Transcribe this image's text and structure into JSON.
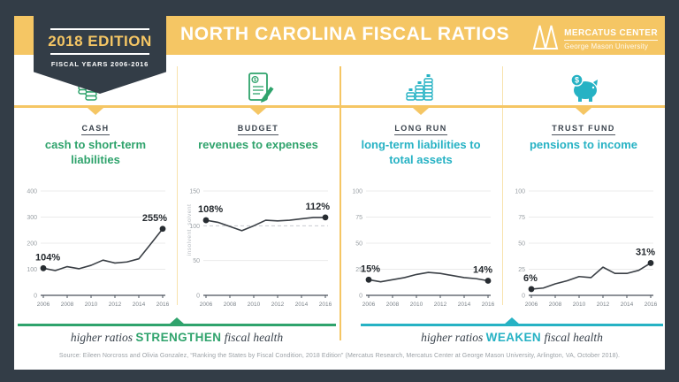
{
  "header": {
    "badge": {
      "title": "2018 EDITION",
      "subtitle": "FISCAL YEARS 2006-2016"
    },
    "title": "NORTH CAROLINA FISCAL RATIOS",
    "logo": {
      "name": "MERCATUS CENTER",
      "subname": "George Mason University"
    }
  },
  "colors": {
    "navy": "#333d47",
    "gold": "#f5c664",
    "green": "#2fa36c",
    "teal": "#26b2c4"
  },
  "panels": [
    {
      "icon": "cash-money-icon",
      "category": "CASH",
      "subtitle": "cash to short-term liabilities"
    },
    {
      "icon": "budget-document-icon",
      "category": "BUDGET",
      "subtitle": "revenues to expenses"
    },
    {
      "icon": "coin-stacks-icon",
      "category": "LONG RUN",
      "subtitle": "long-term liabilities to total assets"
    },
    {
      "icon": "piggy-bank-icon",
      "category": "TRUST FUND",
      "subtitle": "pensions to income"
    }
  ],
  "chart_data": [
    {
      "type": "line",
      "title": "cash to short-term liabilities",
      "x": [
        2006,
        2007,
        2008,
        2009,
        2010,
        2011,
        2012,
        2013,
        2014,
        2015,
        2016
      ],
      "values": [
        104,
        95,
        110,
        102,
        115,
        135,
        124,
        128,
        140,
        197,
        255
      ],
      "ylim": [
        0,
        400
      ],
      "yticks": [
        0,
        100,
        200,
        300,
        400
      ],
      "xticks": [
        2006,
        2008,
        2010,
        2012,
        2014,
        2016
      ],
      "start_label": "104%",
      "end_label": "255%",
      "grid": true,
      "legend": "none"
    },
    {
      "type": "line",
      "title": "revenues to expenses",
      "x": [
        2006,
        2007,
        2008,
        2009,
        2010,
        2011,
        2012,
        2013,
        2014,
        2015,
        2016
      ],
      "values": [
        108,
        105,
        99,
        93,
        100,
        108,
        107,
        108,
        110,
        112,
        112
      ],
      "ylim": [
        0,
        150
      ],
      "yticks": [
        0,
        50,
        100,
        150
      ],
      "xticks": [
        2006,
        2008,
        2010,
        2012,
        2014,
        2016
      ],
      "dashed_ref": 100,
      "side_labels": [
        {
          "text": "solvent",
          "value": 116
        },
        {
          "text": "insolvent",
          "value": 76
        }
      ],
      "start_label": "108%",
      "end_label": "112%",
      "grid": true,
      "legend": "none"
    },
    {
      "type": "line",
      "title": "long-term liabilities to total assets",
      "x": [
        2006,
        2007,
        2008,
        2009,
        2010,
        2011,
        2012,
        2013,
        2014,
        2015,
        2016
      ],
      "values": [
        15,
        13,
        15,
        17,
        20,
        22,
        21,
        19,
        17,
        16,
        14
      ],
      "ylim": [
        0,
        100
      ],
      "yticks": [
        0,
        25,
        50,
        75,
        100
      ],
      "xticks": [
        2006,
        2008,
        2010,
        2012,
        2014,
        2016
      ],
      "start_label": "15%",
      "end_label": "14%",
      "grid": true,
      "legend": "none"
    },
    {
      "type": "line",
      "title": "pensions to income",
      "x": [
        2006,
        2007,
        2008,
        2009,
        2010,
        2011,
        2012,
        2013,
        2014,
        2015,
        2016
      ],
      "values": [
        6,
        7,
        11,
        14,
        18,
        17,
        27,
        21,
        21,
        24,
        31
      ],
      "ylim": [
        0,
        100
      ],
      "yticks": [
        0,
        25,
        50,
        75,
        100
      ],
      "xticks": [
        2006,
        2008,
        2010,
        2012,
        2014,
        2016
      ],
      "start_label": "6%",
      "end_label": "31%",
      "grid": true,
      "legend": "none"
    }
  ],
  "footnotes": [
    {
      "prefix": "higher ratios ",
      "emphasis": "STRENGTHEN",
      "suffix": " fiscal health"
    },
    {
      "prefix": "higher ratios ",
      "emphasis": "WEAKEN",
      "suffix": " fiscal health"
    }
  ],
  "source": "Source: Eileen Norcross and Olivia Gonzalez, “Ranking the States by Fiscal Condition, 2018 Edition” (Mercatus Research, Mercatus Center at George Mason University, Arlington, VA, October 2018)."
}
